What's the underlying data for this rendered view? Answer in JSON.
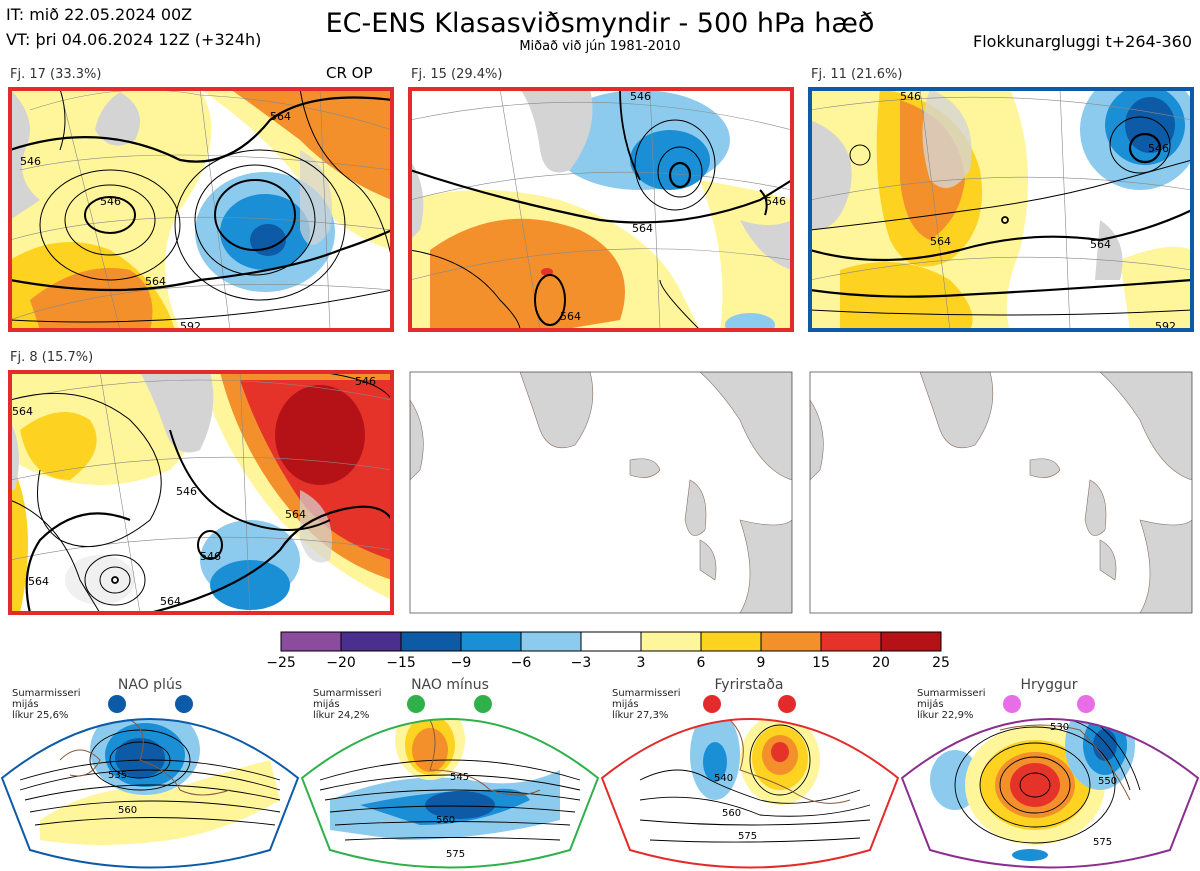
{
  "header": {
    "it": "IT: mið 22.05.2024 00Z",
    "vt": "VT: þri 04.06.2024 12Z  (+324h)",
    "title": "EC-ENS Klasasviðsmyndir - 500 hPa hæð",
    "subtitle": "Miðað við jún 1981-2010",
    "window": "Flokkunargluggi t+264-360"
  },
  "panels": [
    {
      "label": "Fj. 17 (33.3%)",
      "extra": "CR OP",
      "border": "#e32b2b",
      "contours": [
        "546",
        "546",
        "564",
        "564",
        "592"
      ]
    },
    {
      "label": "Fj. 15 (29.4%)",
      "extra": "",
      "border": "#e32b2b",
      "contours": [
        "546",
        "564",
        "564",
        "546"
      ]
    },
    {
      "label": "Fj. 11 (21.6%)",
      "extra": "",
      "border": "#0d5aa7",
      "contours": [
        "546",
        "564",
        "564",
        "546",
        "592"
      ]
    },
    {
      "label": "Fj. 8 (15.7%)",
      "extra": "",
      "border": "#e32b2b",
      "contours": [
        "564",
        "546",
        "546",
        "564",
        "564",
        "564",
        "546"
      ]
    },
    {
      "label": "",
      "extra": "",
      "border": "#555555",
      "contours": []
    },
    {
      "label": "",
      "extra": "",
      "border": "#555555",
      "contours": []
    }
  ],
  "colorbar": {
    "ticks": [
      "−25",
      "−20",
      "−15",
      "−9",
      "−6",
      "−3",
      "3",
      "6",
      "9",
      "15",
      "20",
      "25"
    ],
    "colors": [
      "#8b4c9e",
      "#4a2f8f",
      "#0d5aa7",
      "#1a8fd6",
      "#8ccbee",
      "#ffffff",
      "#fff59a",
      "#fdd221",
      "#f4902c",
      "#e6332a",
      "#b51218"
    ]
  },
  "regimes": [
    {
      "name": "NAO plús",
      "line1": "Sumarmisseri",
      "line2": "mijás",
      "line3": "líkur 25,6%",
      "dot_color": "#0d5aa7",
      "border": "#0d5aa7",
      "contours": [
        "535",
        "560"
      ]
    },
    {
      "name": "NAO mínus",
      "line1": "Sumarmisseri",
      "line2": "mijás",
      "line3": "líkur 24,2%",
      "dot_color": "#2fb04a",
      "border": "#2fb04a",
      "contours": [
        "545",
        "560",
        "575"
      ]
    },
    {
      "name": "Fyrirstaða",
      "line1": "Sumarmisseri",
      "line2": "mijás",
      "line3": "líkur 27,3%",
      "dot_color": "#e32b2b",
      "border": "#e32b2b",
      "contours": [
        "540",
        "560",
        "575"
      ]
    },
    {
      "name": "Hryggur",
      "line1": "Sumarmisseri",
      "line2": "mijás",
      "line3": "líkur 22,9%",
      "dot_color": "#e86ee8",
      "border": "#8b2e8f",
      "contours": [
        "530",
        "550",
        "575"
      ]
    }
  ],
  "chart_data": {
    "type": "heatmap",
    "title": "EC-ENS Klasasviðsmyndir - 500 hPa hæð",
    "subtitle": "Miðað við jún 1981-2010",
    "colorbar_ticks": [
      -25,
      -20,
      -15,
      -9,
      -6,
      -3,
      3,
      6,
      9,
      15,
      20,
      25
    ],
    "clusters": [
      {
        "name": "Fj. 17",
        "percent": 33.3
      },
      {
        "name": "Fj. 15",
        "percent": 29.4
      },
      {
        "name": "Fj. 11",
        "percent": 21.6
      },
      {
        "name": "Fj. 8",
        "percent": 15.7
      }
    ],
    "regimes": [
      {
        "name": "NAO plús",
        "percent": 25.6
      },
      {
        "name": "NAO mínus",
        "percent": 24.2
      },
      {
        "name": "Fyrirstaða",
        "percent": 27.3
      },
      {
        "name": "Hryggur",
        "percent": 22.9
      }
    ]
  }
}
